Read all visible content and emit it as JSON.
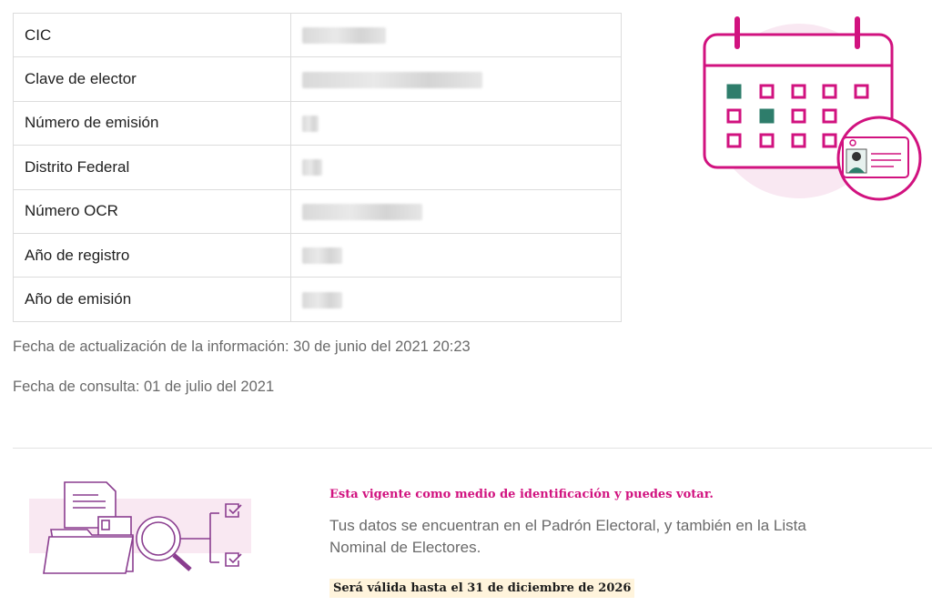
{
  "table": {
    "rows": [
      {
        "label": "CIC"
      },
      {
        "label": "Clave de elector"
      },
      {
        "label": "Número de emisión"
      },
      {
        "label": "Distrito Federal"
      },
      {
        "label": "Número OCR"
      },
      {
        "label": "Año de registro"
      },
      {
        "label": "Año de emisión"
      }
    ]
  },
  "meta": {
    "updated": "Fecha de actualización de la información: 30 de junio del 2021 20:23",
    "consulted": "Fecha de consulta: 01 de julio del 2021"
  },
  "status": {
    "title": "Esta vigente como medio de identificación y puedes votar.",
    "description": "Tus datos se encuentran en el Padrón Electoral, y también en la Lista Nominal de Electores.",
    "valid_until": "Será válida hasta el 31 de diciembre de 2026"
  },
  "colors": {
    "accent": "#d1127f",
    "purple": "#8a3d8f",
    "teal": "#2e7d6b",
    "highlight": "#fff4dc"
  },
  "icons": [
    "calendar-icon",
    "id-card-icon",
    "document-search-icon",
    "checkbox-icon"
  ]
}
